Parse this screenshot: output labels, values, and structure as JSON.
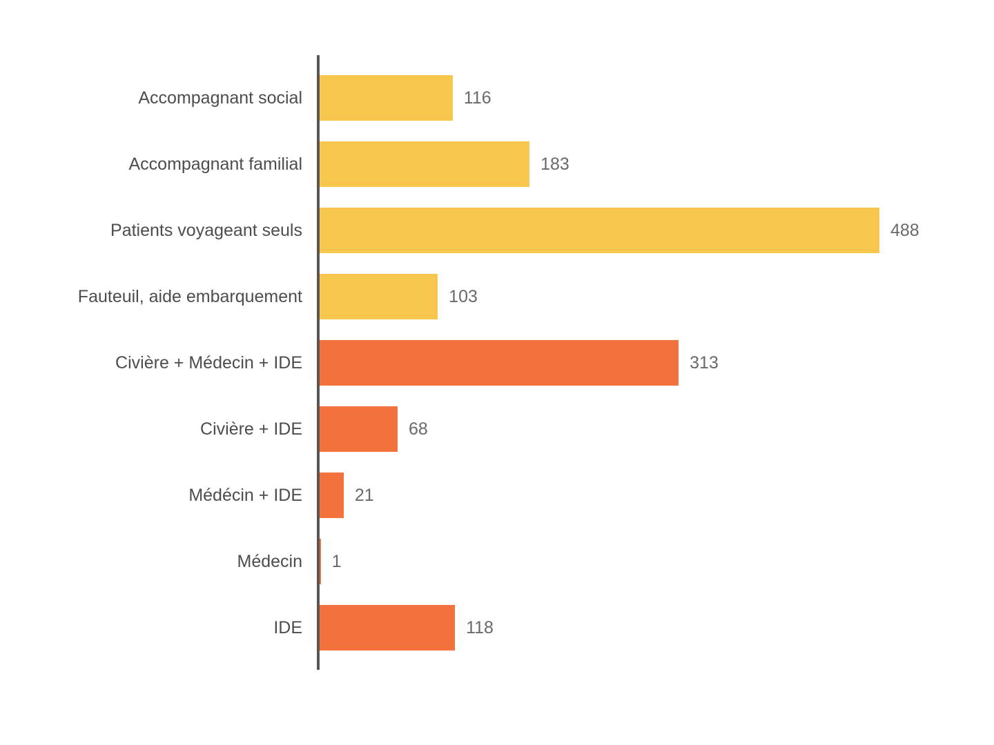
{
  "chart_data": {
    "type": "bar",
    "orientation": "horizontal",
    "title": "",
    "xlabel": "",
    "ylabel": "",
    "grid": false,
    "legend": false,
    "data_labels": true,
    "xlim": [
      0,
      488
    ],
    "categories": [
      "Accompagnant social",
      "Accompagnant familial",
      "Patients voyageant seuls",
      "Fauteuil, aide embarquement",
      "Civière + Médecin + IDE",
      "Civière + IDE",
      "Médécin + IDE",
      "Médecin",
      "IDE"
    ],
    "values": [
      116,
      183,
      488,
      103,
      313,
      68,
      21,
      1,
      118
    ],
    "bar_colors": [
      "#F9C74E",
      "#F9C74E",
      "#F9C74E",
      "#F9C74E",
      "#F2713C",
      "#F2713C",
      "#F2713C",
      "#F2713C",
      "#F2713C"
    ]
  },
  "colors": {
    "yellow_series": "#F9C74E",
    "orange_series": "#F2713C",
    "axis_line": "#5A5555",
    "category_label": "#4D4D4D",
    "value_label": "#696969",
    "background": "#FFFFFF"
  }
}
